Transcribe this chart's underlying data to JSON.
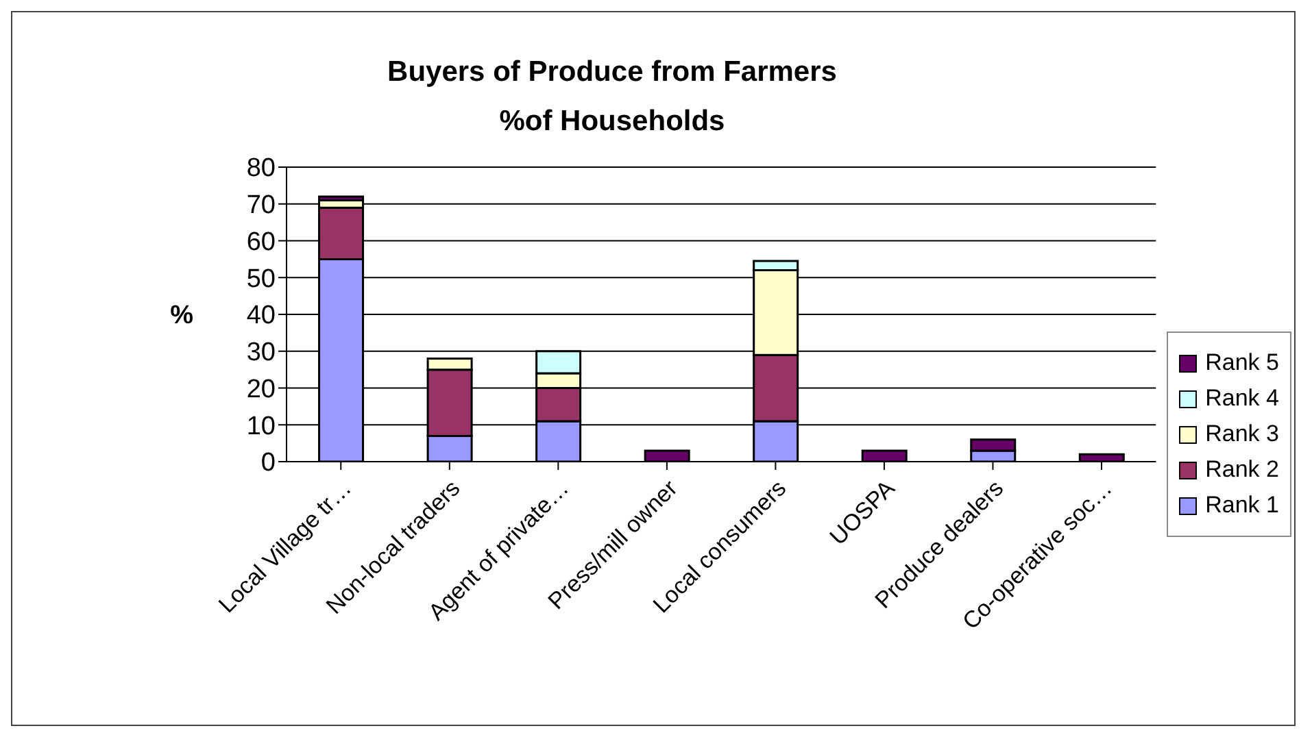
{
  "chart_data": {
    "type": "bar",
    "title": "Buyers of Produce from Farmers",
    "subtitle": "%of Households",
    "ylabel": "%",
    "categories": [
      "Local Village tr…",
      "Non-local traders",
      "Agent of private…",
      "Press/mill owner",
      "Local consumers",
      "UOSPA",
      "Produce dealers",
      "Co-operative soc…"
    ],
    "stacked": true,
    "series": [
      {
        "name": "Rank 1",
        "color": "#9999ff",
        "values": [
          55,
          7,
          11,
          0,
          11,
          0,
          3,
          0
        ]
      },
      {
        "name": "Rank 2",
        "color": "#993366",
        "values": [
          14,
          18,
          9,
          0,
          18,
          0,
          0,
          0
        ]
      },
      {
        "name": "Rank 3",
        "color": "#ffffcc",
        "values": [
          2,
          3,
          4,
          0,
          23,
          0,
          0,
          0
        ]
      },
      {
        "name": "Rank 4",
        "color": "#ccffff",
        "values": [
          0,
          0,
          6,
          0,
          2.5,
          0,
          0,
          0
        ]
      },
      {
        "name": "Rank 5",
        "color": "#660066",
        "values": [
          1,
          0,
          0,
          3,
          0,
          3,
          3,
          2
        ]
      }
    ],
    "ylim": [
      0,
      80
    ],
    "yticks": [
      0,
      10,
      20,
      30,
      40,
      50,
      60,
      70,
      80
    ],
    "grid": "y",
    "legend": "right"
  }
}
